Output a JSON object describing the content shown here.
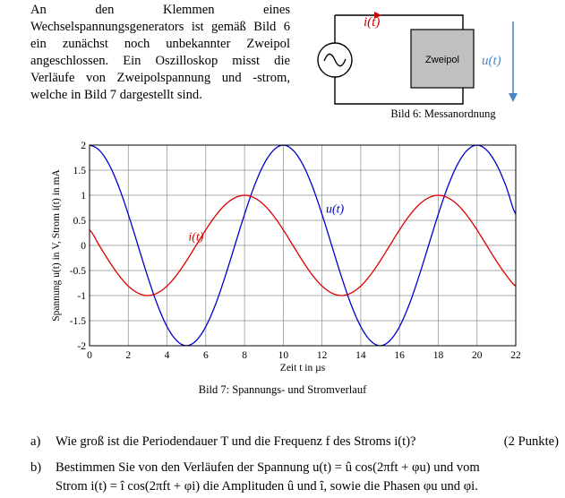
{
  "intro": {
    "text": "An den Klemmen eines Wechselspannungsgenerators ist gemäß Bild 6 ein zunächst noch unbekannter Zweipol angeschlossen. Ein Oszilloskop misst die Verläufe von Zweipolspannung und -strom, welche in Bild 7 dargestellt sind."
  },
  "figure6": {
    "current_label": "i(t)",
    "box_label": "Zweipol",
    "voltage_label": "u(t)",
    "caption": "Bild 6: Messanordnung",
    "colors": {
      "box_fill": "#c0c0c0",
      "arrow": "#4a86c8",
      "current_label": "#cc0000",
      "wire": "#000000"
    }
  },
  "chart_data": {
    "type": "line",
    "x": [
      0,
      0.5,
      1,
      1.5,
      2,
      2.5,
      3,
      3.5,
      4,
      4.5,
      5,
      5.5,
      6,
      6.5,
      7,
      7.5,
      8,
      8.5,
      9,
      9.5,
      10,
      10.5,
      11,
      11.5,
      12,
      12.5,
      13,
      13.5,
      14,
      14.5,
      15,
      15.5,
      16,
      16.5,
      17,
      17.5,
      18,
      18.5,
      19,
      19.5,
      20,
      20.5,
      21,
      21.5,
      22
    ],
    "series": [
      {
        "name": "u(t)",
        "color": "#0000cc",
        "values": [
          2,
          1.9,
          1.62,
          1.18,
          0.62,
          0,
          -0.62,
          -1.18,
          -1.62,
          -1.9,
          -2,
          -1.9,
          -1.62,
          -1.18,
          -0.62,
          0,
          0.62,
          1.18,
          1.62,
          1.9,
          2,
          1.9,
          1.62,
          1.18,
          0.62,
          0,
          -0.62,
          -1.18,
          -1.62,
          -1.9,
          -2,
          -1.9,
          -1.62,
          -1.18,
          -0.62,
          0,
          0.62,
          1.18,
          1.62,
          1.9,
          2,
          1.9,
          1.62,
          1.18,
          0.62
        ]
      },
      {
        "name": "i(t)",
        "color": "#dd0000",
        "values": [
          0.31,
          0,
          -0.31,
          -0.59,
          -0.81,
          -0.95,
          -1,
          -0.95,
          -0.81,
          -0.59,
          -0.31,
          0,
          0.31,
          0.59,
          0.81,
          0.95,
          1,
          0.95,
          0.81,
          0.59,
          0.31,
          0,
          -0.31,
          -0.59,
          -0.81,
          -0.95,
          -1,
          -0.95,
          -0.81,
          -0.59,
          -0.31,
          0,
          0.31,
          0.59,
          0.81,
          0.95,
          1,
          0.95,
          0.81,
          0.59,
          0.31,
          0,
          -0.31,
          -0.59,
          -0.81
        ]
      }
    ],
    "xlabel": "Zeit t in µs",
    "ylabel": "Spannung u(t) in V, Strom i(t) in mA",
    "xlim": [
      0,
      22
    ],
    "ylim": [
      -2,
      2
    ],
    "xticks": [
      0,
      2,
      4,
      6,
      8,
      10,
      12,
      14,
      16,
      18,
      20,
      22
    ],
    "yticks": [
      2,
      1.5,
      1,
      0.5,
      0,
      -0.5,
      -1,
      -1.5,
      -2
    ],
    "xtick_labels": [
      "0",
      "2",
      "4",
      "6",
      "8",
      "10",
      "12",
      "14",
      "16",
      "18",
      "20",
      "22"
    ],
    "ytick_labels": [
      "2",
      "1.5",
      "1",
      "0.5",
      "0",
      "-0.5",
      "-1",
      "-1.5",
      "-2"
    ],
    "grid": true,
    "annotations": [
      {
        "text": "i(t)",
        "x": 5.1,
        "y": 0.1,
        "color": "#dd0000"
      },
      {
        "text": "u(t)",
        "x": 12.2,
        "y": 0.65,
        "color": "#0000cc"
      }
    ],
    "caption": "Bild 7: Spannungs- und Stromverlauf"
  },
  "tasks": [
    {
      "label": "a)",
      "text": "Wie groß ist die Periodendauer T und die Frequenz f des Stroms i(t)?",
      "points": "(2 Punkte)"
    },
    {
      "label": "b)",
      "line1": "Bestimmen Sie von den Verläufen der Spannung u(t) = û cos(2πft + φu) und vom",
      "line2": "Strom i(t) = î cos(2πft + φi) die Amplituden û und î, sowie die Phasen φu und φi."
    }
  ]
}
